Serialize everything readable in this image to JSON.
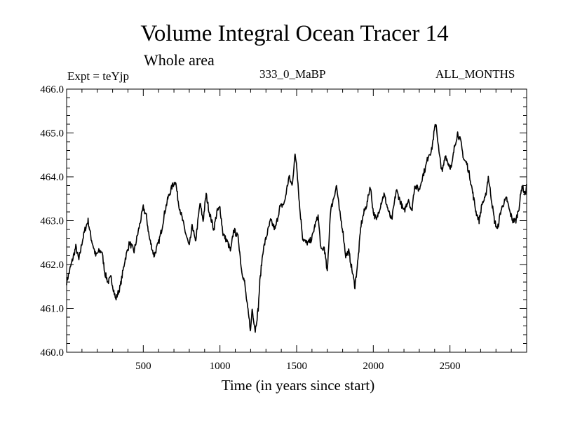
{
  "header": {
    "title": "Volume Integral Ocean Tracer 14",
    "subtitle": "Whole area",
    "experiment": "Expt = teYjp",
    "run": "333_0_MaBP",
    "months": "ALL_MONTHS"
  },
  "chart_data": {
    "type": "line",
    "title": "Volume Integral Ocean Tracer 14",
    "xlabel": "Time (in years since start)",
    "ylabel": "",
    "xlim": [
      0,
      3000
    ],
    "ylim": [
      460.0,
      466.0
    ],
    "xticks": [
      500,
      1000,
      1500,
      2000,
      2500
    ],
    "xtick_labels": [
      "500",
      "1000",
      "1500",
      "2000",
      "2500"
    ],
    "yticks": [
      460.0,
      461.0,
      462.0,
      463.0,
      464.0,
      465.0,
      466.0
    ],
    "ytick_labels": [
      "460.0",
      "461.0",
      "462.0",
      "463.0",
      "464.0",
      "465.0",
      "466.0"
    ],
    "grid": false,
    "series": [
      {
        "name": "Tracer 14",
        "x": [
          0,
          30,
          60,
          80,
          100,
          120,
          140,
          160,
          190,
          210,
          230,
          250,
          270,
          290,
          320,
          350,
          380,
          410,
          440,
          470,
          500,
          520,
          540,
          570,
          600,
          620,
          640,
          660,
          690,
          710,
          730,
          750,
          770,
          800,
          820,
          840,
          870,
          890,
          910,
          930,
          960,
          980,
          1000,
          1020,
          1050,
          1070,
          1090,
          1120,
          1140,
          1160,
          1180,
          1200,
          1210,
          1230,
          1250,
          1260,
          1280,
          1300,
          1330,
          1360,
          1390,
          1420,
          1450,
          1470,
          1490,
          1500,
          1520,
          1540,
          1560,
          1580,
          1600,
          1620,
          1640,
          1660,
          1680,
          1700,
          1720,
          1740,
          1760,
          1780,
          1800,
          1820,
          1840,
          1860,
          1880,
          1900,
          1920,
          1940,
          1960,
          1980,
          2000,
          2020,
          2050,
          2070,
          2100,
          2120,
          2150,
          2170,
          2200,
          2230,
          2250,
          2270,
          2300,
          2320,
          2340,
          2360,
          2380,
          2400,
          2410,
          2430,
          2450,
          2470,
          2490,
          2510,
          2530,
          2550,
          2570,
          2590,
          2610,
          2630,
          2650,
          2670,
          2690,
          2710,
          2730,
          2750,
          2770,
          2790,
          2810,
          2830,
          2850,
          2870,
          2890,
          2910,
          2930,
          2950,
          2970,
          2990,
          3000
        ],
        "values": [
          461.6,
          462.0,
          462.4,
          462.1,
          462.5,
          462.8,
          463.0,
          462.6,
          462.2,
          462.3,
          462.3,
          461.8,
          461.6,
          461.7,
          461.2,
          461.5,
          462.1,
          462.5,
          462.3,
          462.8,
          463.3,
          463.1,
          462.6,
          462.2,
          462.5,
          462.8,
          463.2,
          463.5,
          463.8,
          463.9,
          463.4,
          463.1,
          462.8,
          462.4,
          462.9,
          462.5,
          463.4,
          463.0,
          463.6,
          463.2,
          462.8,
          463.2,
          463.3,
          462.7,
          462.5,
          462.3,
          462.8,
          462.6,
          461.9,
          461.6,
          461.0,
          460.5,
          461.0,
          460.5,
          461.0,
          461.6,
          462.3,
          462.6,
          463.0,
          462.8,
          463.3,
          463.4,
          464.0,
          463.8,
          464.5,
          464.3,
          463.3,
          462.6,
          462.5,
          462.5,
          462.6,
          462.9,
          463.1,
          462.3,
          462.4,
          461.8,
          463.2,
          463.5,
          463.8,
          463.2,
          462.8,
          462.2,
          462.3,
          461.9,
          461.5,
          462.1,
          462.9,
          463.2,
          463.4,
          463.8,
          463.2,
          463.0,
          463.4,
          463.6,
          463.2,
          463.0,
          463.7,
          463.5,
          463.2,
          463.5,
          463.2,
          463.8,
          463.7,
          464.0,
          464.2,
          464.5,
          464.6,
          465.1,
          465.2,
          464.5,
          464.1,
          464.5,
          464.3,
          464.2,
          464.7,
          465.0,
          464.8,
          464.4,
          464.3,
          464.0,
          463.6,
          463.2,
          463.0,
          463.4,
          463.5,
          464.0,
          463.5,
          463.0,
          462.8,
          463.2,
          463.4,
          463.5,
          463.2,
          463.0,
          463.0,
          463.3,
          463.8,
          463.6,
          463.8
        ]
      }
    ]
  }
}
